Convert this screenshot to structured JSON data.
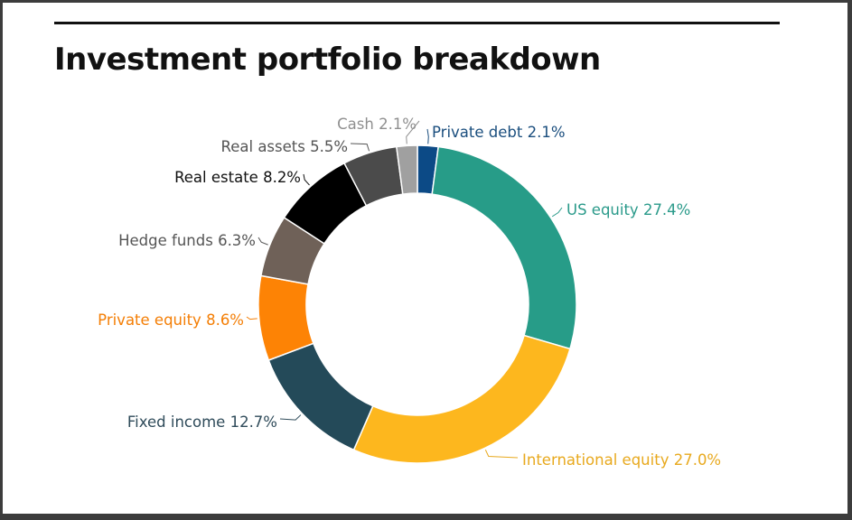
{
  "header": {
    "title": "Investment portfolio breakdown"
  },
  "chart_data": {
    "type": "pie",
    "variant": "donut",
    "title": "Investment portfolio breakdown",
    "start": "top, clockwise",
    "slices": [
      {
        "label": "Private debt 2.1%",
        "name": "Private debt",
        "value": 2.1,
        "color": "#0c4a86",
        "text_color": "#1a4e7e"
      },
      {
        "label": "US equity 27.4%",
        "name": "US equity",
        "value": 27.4,
        "color": "#279c88",
        "text_color": "#2a9a8a"
      },
      {
        "label": "International equity 27.0%",
        "name": "International equity",
        "value": 27.0,
        "color": "#fdb71e",
        "text_color": "#e8a91e"
      },
      {
        "label": "Fixed income 12.7%",
        "name": "Fixed income",
        "value": 12.7,
        "color": "#244a59",
        "text_color": "#2f4b5a"
      },
      {
        "label": "Private equity 8.6%",
        "name": "Private equity",
        "value": 8.6,
        "color": "#fd8305",
        "text_color": "#f47e05"
      },
      {
        "label": "Hedge funds 6.3%",
        "name": "Hedge funds",
        "value": 6.3,
        "color": "#6f6158",
        "text_color": "#555555"
      },
      {
        "label": "Real estate 8.2%",
        "name": "Real estate",
        "value": 8.2,
        "color": "#000000",
        "text_color": "#111111"
      },
      {
        "label": "Real assets 5.5%",
        "name": "Real assets",
        "value": 5.5,
        "color": "#4b4b4b",
        "text_color": "#555555"
      },
      {
        "label": "Cash 2.1%",
        "name": "Cash",
        "value": 2.1,
        "color": "#a0a0a0",
        "text_color": "#8f8f8f"
      }
    ]
  }
}
